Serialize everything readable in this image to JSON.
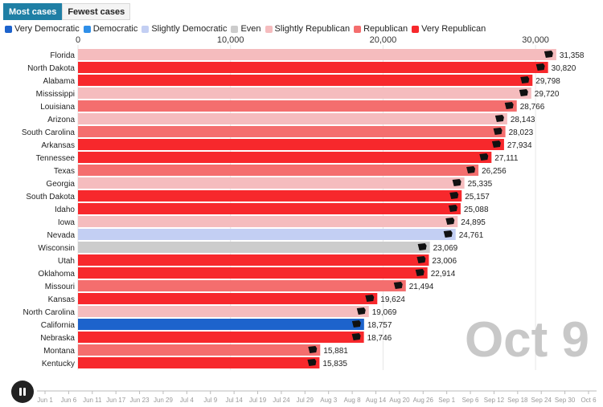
{
  "tabs": [
    {
      "label": "Most cases",
      "active": true
    },
    {
      "label": "Fewest cases",
      "active": false
    }
  ],
  "legend": [
    {
      "label": "Very Democratic",
      "color": "#1d63cc"
    },
    {
      "label": "Democratic",
      "color": "#2f8fe8"
    },
    {
      "label": "Slightly Democratic",
      "color": "#c3cff3"
    },
    {
      "label": "Even",
      "color": "#cccccc"
    },
    {
      "label": "Slightly Republican",
      "color": "#f5bcbe"
    },
    {
      "label": "Republican",
      "color": "#f46e6e"
    },
    {
      "label": "Very Republican",
      "color": "#f7282c"
    }
  ],
  "date_overlay": "Oct 9",
  "timeline": {
    "labels": [
      "Jun 1",
      "Jun 6",
      "Jun 11",
      "Jun 17",
      "Jun 23",
      "Jun 29",
      "Jul 4",
      "Jul 9",
      "Jul 14",
      "Jul 19",
      "Jul 24",
      "Jul 29",
      "Aug 3",
      "Aug 8",
      "Aug 14",
      "Aug 20",
      "Aug 26",
      "Sep 1",
      "Sep 6",
      "Sep 12",
      "Sep 18",
      "Sep 24",
      "Sep 30",
      "Oct 6"
    ]
  },
  "chart_data": {
    "type": "bar",
    "orientation": "horizontal",
    "xlim": [
      0,
      34000
    ],
    "x_ticks": [
      0,
      10000,
      20000,
      30000
    ],
    "x_tick_labels": [
      "0",
      "10,000",
      "20,000",
      "30,000"
    ],
    "grid": true,
    "categories": [
      "Florida",
      "North Dakota",
      "Alabama",
      "Mississippi",
      "Louisiana",
      "Arizona",
      "South Carolina",
      "Arkansas",
      "Tennessee",
      "Texas",
      "Georgia",
      "South Dakota",
      "Idaho",
      "Iowa",
      "Nevada",
      "Wisconsin",
      "Utah",
      "Oklahoma",
      "Missouri",
      "Kansas",
      "North Carolina",
      "California",
      "Nebraska",
      "Montana",
      "Kentucky"
    ],
    "values": [
      31358,
      30820,
      29798,
      29720,
      28766,
      28143,
      28023,
      27934,
      27111,
      26256,
      25335,
      25157,
      25088,
      24895,
      24761,
      23069,
      23006,
      22914,
      21494,
      19624,
      19069,
      18757,
      18746,
      15881,
      15835
    ],
    "value_labels": [
      "31,358",
      "30,820",
      "29,798",
      "29,720",
      "28,766",
      "28,143",
      "28,023",
      "27,934",
      "27,111",
      "26,256",
      "25,335",
      "25,157",
      "25,088",
      "24,895",
      "24,761",
      "23,069",
      "23,006",
      "22,914",
      "21,494",
      "19,624",
      "19,069",
      "18,757",
      "18,746",
      "15,881",
      "15,835"
    ],
    "leanings": [
      "Slightly Republican",
      "Very Republican",
      "Very Republican",
      "Slightly Republican",
      "Republican",
      "Slightly Republican",
      "Republican",
      "Very Republican",
      "Very Republican",
      "Republican",
      "Slightly Republican",
      "Very Republican",
      "Very Republican",
      "Slightly Republican",
      "Slightly Democratic",
      "Even",
      "Very Republican",
      "Very Republican",
      "Republican",
      "Very Republican",
      "Slightly Republican",
      "Very Democratic",
      "Very Republican",
      "Republican",
      "Very Republican"
    ]
  }
}
